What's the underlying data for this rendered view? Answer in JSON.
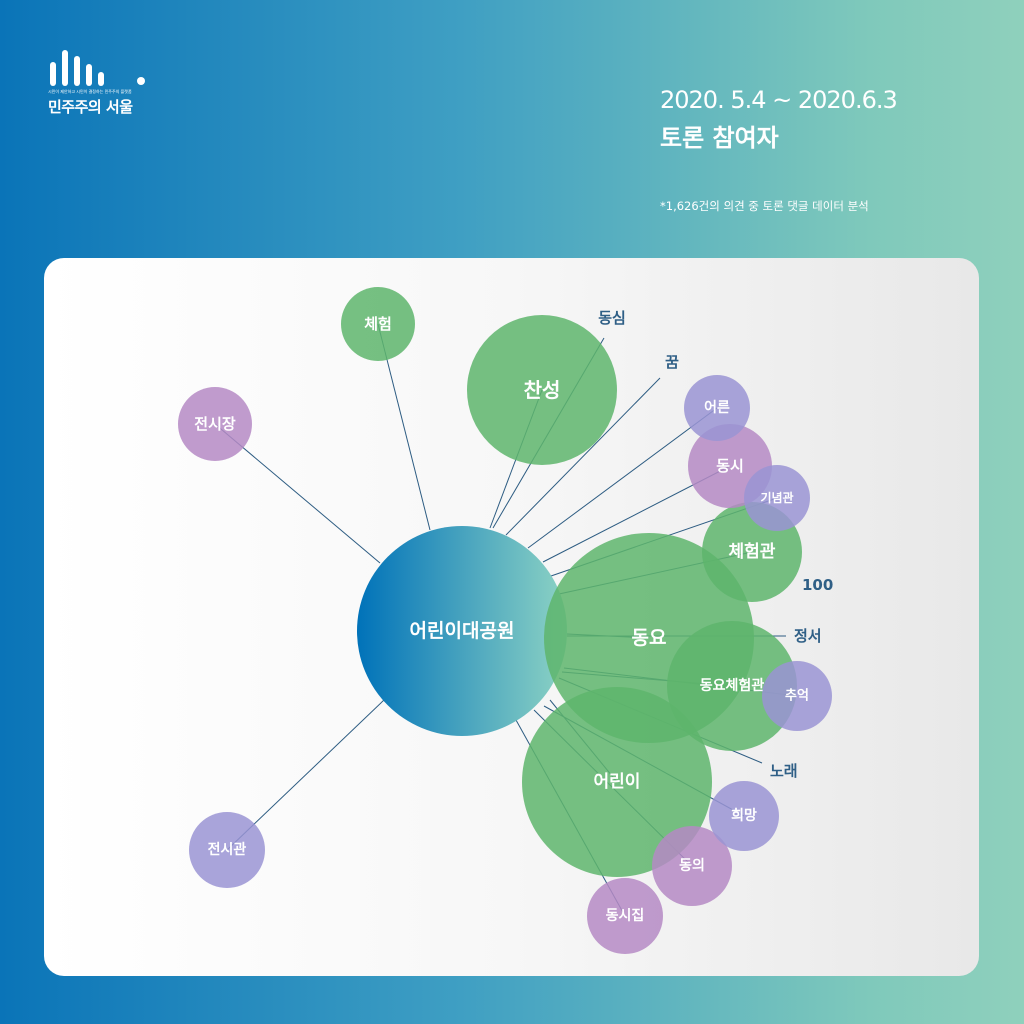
{
  "logo": {
    "tagline": "시민이 제안하고 시민이 결정하는 민주주의 플랫폼",
    "name": "민주주의 서울"
  },
  "header": {
    "date_range": "2020. 5.4 ~ 2020.6.3",
    "title": "토론 참여자",
    "note": "*1,626건의 의견 중 토론 댓글 데이터 분석"
  },
  "colors": {
    "green": "#5eb56c",
    "purple_pink": "#b58ac4",
    "purple_blue": "#9a94d4",
    "center_start": "#0072b9",
    "center_end": "#8dd3c4",
    "line": "#2d5c82",
    "term_text": "#2f5f86"
  },
  "network": {
    "center": {
      "label": "어린이대공원"
    },
    "nodes": [
      {
        "id": "chehum",
        "label": "체험",
        "style": "green",
        "weight": 40
      },
      {
        "id": "chanseong",
        "label": "찬성",
        "style": "green",
        "weight": 75
      },
      {
        "id": "jeonsijang",
        "label": "전시장",
        "style": "pink",
        "weight": 38
      },
      {
        "id": "eoreun",
        "label": "어른",
        "style": "blue",
        "weight": 33
      },
      {
        "id": "dongsi",
        "label": "동시",
        "style": "pink",
        "weight": 42
      },
      {
        "id": "ginyeomgwan",
        "label": "기념관",
        "style": "blue",
        "weight": 33
      },
      {
        "id": "chehumgwan",
        "label": "체험관",
        "style": "green",
        "weight": 50
      },
      {
        "id": "dongyo",
        "label": "동요",
        "style": "green",
        "weight": 105
      },
      {
        "id": "dongyochehumgwan",
        "label": "동요체험관",
        "style": "green",
        "weight": 65
      },
      {
        "id": "chueok",
        "label": "추억",
        "style": "blue",
        "weight": 35
      },
      {
        "id": "eorini",
        "label": "어린이",
        "style": "green",
        "weight": 95
      },
      {
        "id": "huimang",
        "label": "희망",
        "style": "blue",
        "weight": 35
      },
      {
        "id": "dongui",
        "label": "동의",
        "style": "pink",
        "weight": 40
      },
      {
        "id": "dongsijip",
        "label": "동시집",
        "style": "pink",
        "weight": 38
      },
      {
        "id": "jeonsigwan",
        "label": "전시관",
        "style": "blue",
        "weight": 38
      }
    ],
    "terms": [
      {
        "id": "dongsim",
        "label": "동심"
      },
      {
        "id": "kkum",
        "label": "꿈"
      },
      {
        "id": "jeongseo",
        "label": "정서"
      },
      {
        "id": "norae",
        "label": "노래"
      },
      {
        "id": "hundred",
        "label": "100"
      }
    ]
  }
}
